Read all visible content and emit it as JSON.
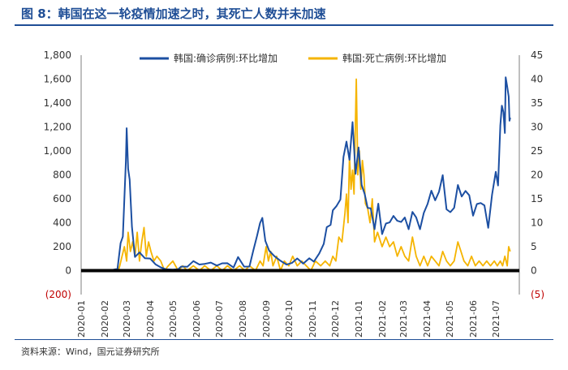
{
  "header": {
    "title": "图 8：韩国在这一轮疫情加速之时，其死亡人数并未加速"
  },
  "footer": {
    "source": "资料来源：Wind，国元证券研究所"
  },
  "colors": {
    "title": "#1f4e96",
    "confirmed": "#1c4fa2",
    "deaths": "#f5b400",
    "negative_label": "#c00000",
    "zero_line": "#000000",
    "axis_text": "#333333"
  },
  "chart_data": {
    "type": "line",
    "xlabel": "",
    "ylabel": "",
    "grid": false,
    "legend_position": "top",
    "x_ticks": [
      "2020-01",
      "2020-02",
      "2020-03",
      "2020-04",
      "2020-05",
      "2020-06",
      "2020-07",
      "2020-08",
      "2020-09",
      "2020-10",
      "2020-11",
      "2020-12",
      "2021-01",
      "2021-02",
      "2021-03",
      "2021-04",
      "2021-05",
      "2021-06",
      "2021-07"
    ],
    "y_left": {
      "range": [
        -200,
        1800
      ],
      "tick_labels": [
        "(200)",
        "0",
        "200",
        "400",
        "600",
        "800",
        "1,000",
        "1,200",
        "1,400",
        "1,600",
        "1,800"
      ],
      "tick_values": [
        -200,
        0,
        200,
        400,
        600,
        800,
        1000,
        1200,
        1400,
        1600,
        1800
      ]
    },
    "y_right": {
      "range": [
        -5,
        45
      ],
      "tick_labels": [
        "(5)",
        "0",
        "5",
        "10",
        "15",
        "20",
        "25",
        "30",
        "35",
        "40",
        "45"
      ],
      "tick_values": [
        -5,
        0,
        5,
        10,
        15,
        20,
        25,
        30,
        35,
        40,
        45
      ]
    },
    "series": [
      {
        "name": "韩国:确诊病例:环比增加",
        "axis": "left",
        "color": "#1c4fa2",
        "points": [
          [
            "2020-01-20",
            1
          ],
          [
            "2020-02-01",
            3
          ],
          [
            "2020-02-10",
            5
          ],
          [
            "2020-02-18",
            15
          ],
          [
            "2020-02-22",
            229
          ],
          [
            "2020-02-25",
            284
          ],
          [
            "2020-02-29",
            909
          ],
          [
            "2020-03-01",
            1190
          ],
          [
            "2020-03-03",
            851
          ],
          [
            "2020-03-05",
            760
          ],
          [
            "2020-03-08",
            367
          ],
          [
            "2020-03-12",
            114
          ],
          [
            "2020-03-18",
            152
          ],
          [
            "2020-03-25",
            104
          ],
          [
            "2020-04-01",
            101
          ],
          [
            "2020-04-08",
            53
          ],
          [
            "2020-04-15",
            27
          ],
          [
            "2020-04-22",
            11
          ],
          [
            "2020-05-01",
            9
          ],
          [
            "2020-05-08",
            12
          ],
          [
            "2020-05-12",
            34
          ],
          [
            "2020-05-20",
            32
          ],
          [
            "2020-05-28",
            79
          ],
          [
            "2020-06-05",
            51
          ],
          [
            "2020-06-12",
            56
          ],
          [
            "2020-06-20",
            67
          ],
          [
            "2020-06-28",
            42
          ],
          [
            "2020-07-05",
            61
          ],
          [
            "2020-07-12",
            62
          ],
          [
            "2020-07-20",
            26
          ],
          [
            "2020-07-26",
            113
          ],
          [
            "2020-08-03",
            33
          ],
          [
            "2020-08-10",
            34
          ],
          [
            "2020-08-15",
            166
          ],
          [
            "2020-08-20",
            288
          ],
          [
            "2020-08-24",
            397
          ],
          [
            "2020-08-27",
            441
          ],
          [
            "2020-08-31",
            248
          ],
          [
            "2020-09-05",
            167
          ],
          [
            "2020-09-12",
            121
          ],
          [
            "2020-09-20",
            82
          ],
          [
            "2020-09-28",
            50
          ],
          [
            "2020-10-05",
            64
          ],
          [
            "2020-10-12",
            102
          ],
          [
            "2020-10-20",
            58
          ],
          [
            "2020-10-28",
            103
          ],
          [
            "2020-11-03",
            75
          ],
          [
            "2020-11-10",
            143
          ],
          [
            "2020-11-16",
            223
          ],
          [
            "2020-11-20",
            363
          ],
          [
            "2020-11-25",
            382
          ],
          [
            "2020-11-28",
            504
          ],
          [
            "2020-12-03",
            540
          ],
          [
            "2020-12-08",
            594
          ],
          [
            "2020-12-12",
            950
          ],
          [
            "2020-12-16",
            1078
          ],
          [
            "2020-12-20",
            926
          ],
          [
            "2020-12-24",
            1241
          ],
          [
            "2020-12-28",
            808
          ],
          [
            "2021-01-01",
            1029
          ],
          [
            "2021-01-05",
            715
          ],
          [
            "2021-01-09",
            641
          ],
          [
            "2021-01-13",
            524
          ],
          [
            "2021-01-17",
            520
          ],
          [
            "2021-01-22",
            346
          ],
          [
            "2021-01-27",
            559
          ],
          [
            "2021-02-01",
            305
          ],
          [
            "2021-02-06",
            393
          ],
          [
            "2021-02-11",
            403
          ],
          [
            "2021-02-16",
            457
          ],
          [
            "2021-02-21",
            416
          ],
          [
            "2021-02-26",
            406
          ],
          [
            "2021-03-03",
            444
          ],
          [
            "2021-03-08",
            346
          ],
          [
            "2021-03-13",
            490
          ],
          [
            "2021-03-18",
            445
          ],
          [
            "2021-03-23",
            346
          ],
          [
            "2021-03-28",
            482
          ],
          [
            "2021-04-02",
            558
          ],
          [
            "2021-04-07",
            668
          ],
          [
            "2021-04-12",
            587
          ],
          [
            "2021-04-17",
            658
          ],
          [
            "2021-04-22",
            797
          ],
          [
            "2021-04-27",
            512
          ],
          [
            "2021-05-02",
            488
          ],
          [
            "2021-05-07",
            525
          ],
          [
            "2021-05-12",
            715
          ],
          [
            "2021-05-17",
            619
          ],
          [
            "2021-05-22",
            666
          ],
          [
            "2021-05-27",
            629
          ],
          [
            "2021-06-01",
            459
          ],
          [
            "2021-06-06",
            556
          ],
          [
            "2021-06-11",
            565
          ],
          [
            "2021-06-16",
            545
          ],
          [
            "2021-06-21",
            357
          ],
          [
            "2021-06-26",
            634
          ],
          [
            "2021-07-01",
            826
          ],
          [
            "2021-07-04",
            711
          ],
          [
            "2021-07-07",
            1212
          ],
          [
            "2021-07-09",
            1378
          ],
          [
            "2021-07-11",
            1324
          ],
          [
            "2021-07-13",
            1150
          ],
          [
            "2021-07-14",
            1615
          ],
          [
            "2021-07-16",
            1536
          ],
          [
            "2021-07-18",
            1454
          ],
          [
            "2021-07-19",
            1252
          ],
          [
            "2021-07-20",
            1278
          ]
        ]
      },
      {
        "name": "韩国:死亡病例:环比增加",
        "axis": "right",
        "color": "#f5b400",
        "points": [
          [
            "2020-01-20",
            0
          ],
          [
            "2020-02-19",
            0
          ],
          [
            "2020-02-21",
            1
          ],
          [
            "2020-02-24",
            3
          ],
          [
            "2020-02-27",
            5
          ],
          [
            "2020-03-01",
            2
          ],
          [
            "2020-03-03",
            8
          ],
          [
            "2020-03-06",
            4
          ],
          [
            "2020-03-09",
            6
          ],
          [
            "2020-03-12",
            3
          ],
          [
            "2020-03-15",
            8
          ],
          [
            "2020-03-18",
            2
          ],
          [
            "2020-03-21",
            6
          ],
          [
            "2020-03-24",
            9
          ],
          [
            "2020-03-27",
            3
          ],
          [
            "2020-03-30",
            6
          ],
          [
            "2020-04-02",
            4
          ],
          [
            "2020-04-06",
            2
          ],
          [
            "2020-04-10",
            3
          ],
          [
            "2020-04-15",
            2
          ],
          [
            "2020-04-20",
            0
          ],
          [
            "2020-04-25",
            1
          ],
          [
            "2020-05-01",
            2
          ],
          [
            "2020-05-08",
            0
          ],
          [
            "2020-05-14",
            1
          ],
          [
            "2020-05-20",
            0
          ],
          [
            "2020-05-28",
            1
          ],
          [
            "2020-06-05",
            0
          ],
          [
            "2020-06-12",
            1
          ],
          [
            "2020-06-20",
            0
          ],
          [
            "2020-06-28",
            1
          ],
          [
            "2020-07-05",
            0
          ],
          [
            "2020-07-12",
            1
          ],
          [
            "2020-07-20",
            0
          ],
          [
            "2020-07-28",
            1
          ],
          [
            "2020-08-04",
            0
          ],
          [
            "2020-08-10",
            1
          ],
          [
            "2020-08-18",
            0
          ],
          [
            "2020-08-24",
            2
          ],
          [
            "2020-08-28",
            1
          ],
          [
            "2020-09-01",
            5
          ],
          [
            "2020-09-04",
            2
          ],
          [
            "2020-09-07",
            4
          ],
          [
            "2020-09-10",
            1
          ],
          [
            "2020-09-15",
            3
          ],
          [
            "2020-09-20",
            0
          ],
          [
            "2020-09-25",
            2
          ],
          [
            "2020-10-01",
            1
          ],
          [
            "2020-10-06",
            3
          ],
          [
            "2020-10-12",
            1
          ],
          [
            "2020-10-18",
            2
          ],
          [
            "2020-10-24",
            1
          ],
          [
            "2020-10-30",
            0
          ],
          [
            "2020-11-05",
            2
          ],
          [
            "2020-11-12",
            1
          ],
          [
            "2020-11-18",
            2
          ],
          [
            "2020-11-24",
            1
          ],
          [
            "2020-11-28",
            3
          ],
          [
            "2020-12-02",
            2
          ],
          [
            "2020-12-06",
            7
          ],
          [
            "2020-12-10",
            6
          ],
          [
            "2020-12-14",
            12
          ],
          [
            "2020-12-16",
            16
          ],
          [
            "2020-12-18",
            10
          ],
          [
            "2020-12-20",
            24
          ],
          [
            "2020-12-22",
            17
          ],
          [
            "2020-12-24",
            21
          ],
          [
            "2020-12-26",
            16
          ],
          [
            "2020-12-29",
            40
          ],
          [
            "2020-12-31",
            20
          ],
          [
            "2021-01-02",
            25
          ],
          [
            "2021-01-04",
            17
          ],
          [
            "2021-01-06",
            23
          ],
          [
            "2021-01-08",
            20
          ],
          [
            "2021-01-10",
            14
          ],
          [
            "2021-01-13",
            13
          ],
          [
            "2021-01-16",
            10
          ],
          [
            "2021-01-19",
            15
          ],
          [
            "2021-01-22",
            6
          ],
          [
            "2021-01-26",
            8
          ],
          [
            "2021-02-01",
            5
          ],
          [
            "2021-02-06",
            7
          ],
          [
            "2021-02-11",
            5
          ],
          [
            "2021-02-16",
            6
          ],
          [
            "2021-02-21",
            3
          ],
          [
            "2021-02-26",
            5
          ],
          [
            "2021-03-03",
            3
          ],
          [
            "2021-03-08",
            2
          ],
          [
            "2021-03-13",
            7
          ],
          [
            "2021-03-18",
            3
          ],
          [
            "2021-03-23",
            1
          ],
          [
            "2021-03-28",
            3
          ],
          [
            "2021-04-02",
            1
          ],
          [
            "2021-04-07",
            3
          ],
          [
            "2021-04-12",
            2
          ],
          [
            "2021-04-17",
            1
          ],
          [
            "2021-04-22",
            4
          ],
          [
            "2021-04-27",
            2
          ],
          [
            "2021-05-02",
            1
          ],
          [
            "2021-05-07",
            2
          ],
          [
            "2021-05-12",
            6
          ],
          [
            "2021-05-16",
            4
          ],
          [
            "2021-05-20",
            2
          ],
          [
            "2021-05-25",
            1
          ],
          [
            "2021-05-30",
            3
          ],
          [
            "2021-06-04",
            1
          ],
          [
            "2021-06-09",
            2
          ],
          [
            "2021-06-14",
            1
          ],
          [
            "2021-06-19",
            2
          ],
          [
            "2021-06-24",
            1
          ],
          [
            "2021-06-29",
            2
          ],
          [
            "2021-07-03",
            1
          ],
          [
            "2021-07-07",
            2
          ],
          [
            "2021-07-10",
            1
          ],
          [
            "2021-07-13",
            3
          ],
          [
            "2021-07-16",
            1
          ],
          [
            "2021-07-18",
            5
          ],
          [
            "2021-07-20",
            4
          ]
        ]
      }
    ]
  }
}
